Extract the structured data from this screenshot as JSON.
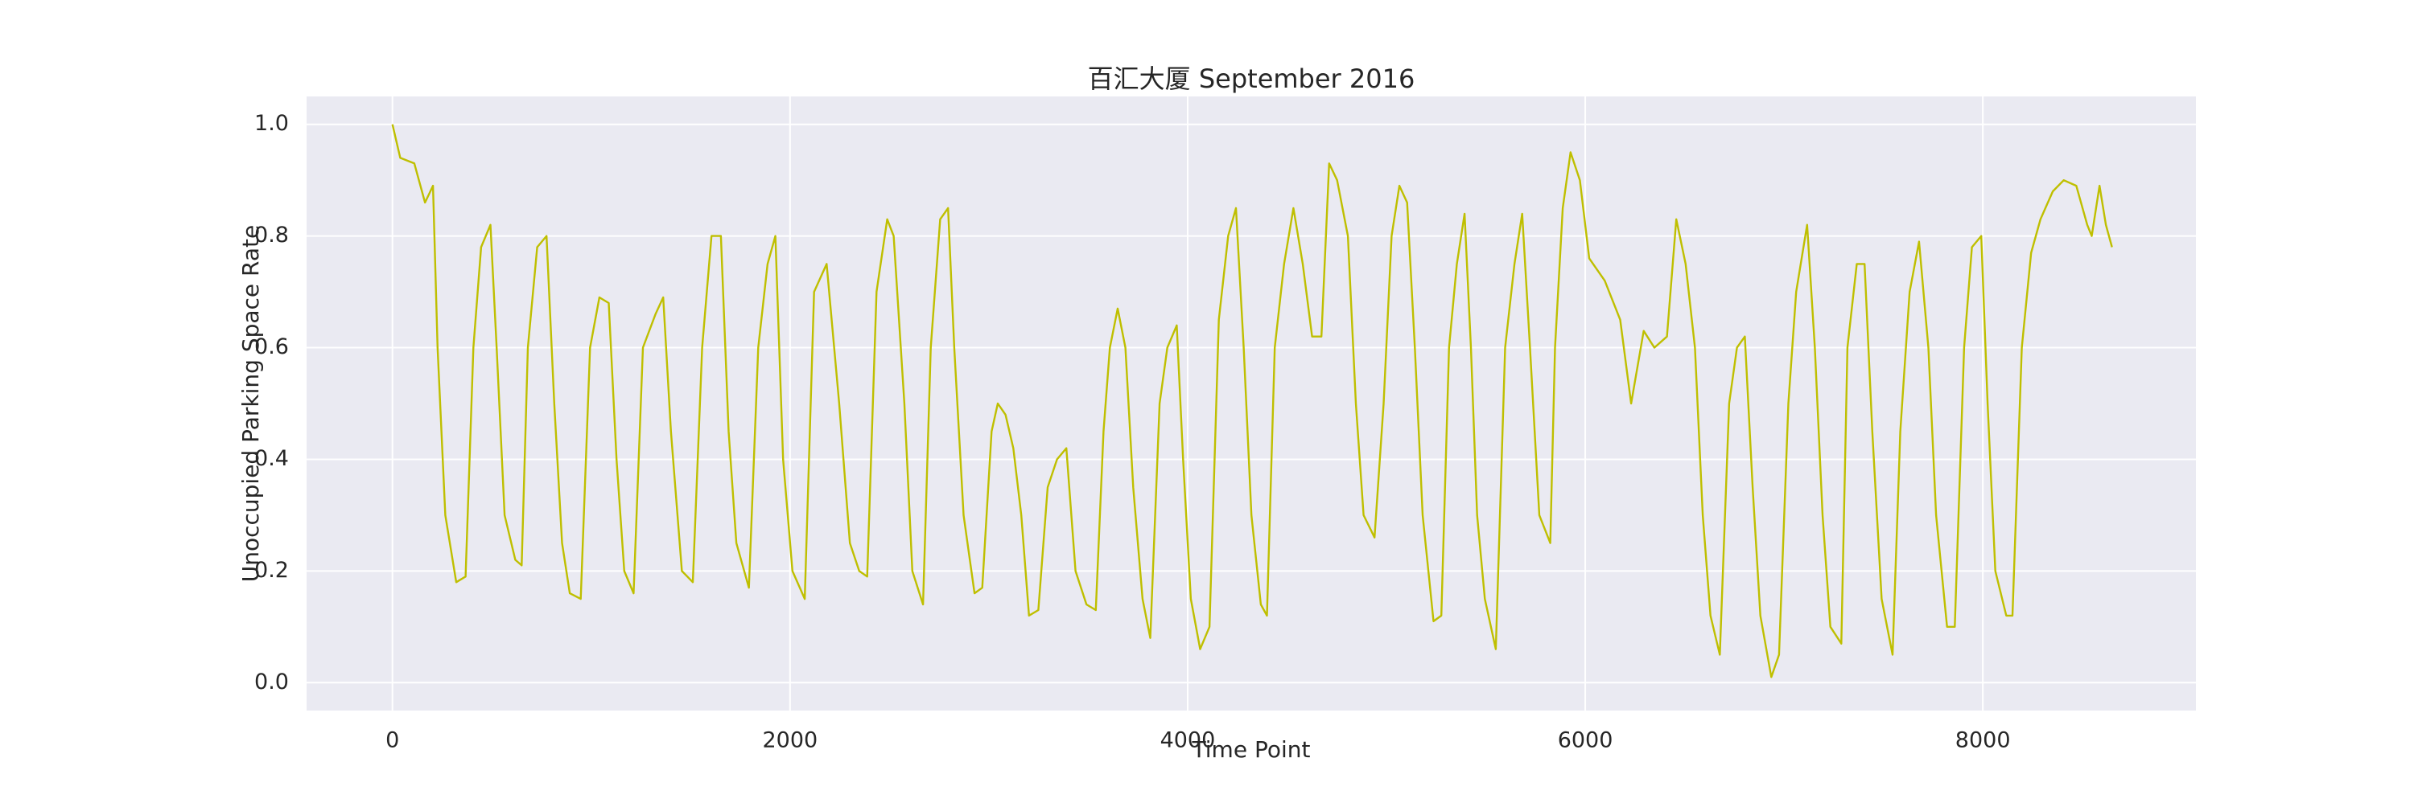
{
  "chart_data": {
    "type": "line",
    "title": "百汇大厦 September 2016",
    "x_label": "Time Point",
    "y_label": "Unoccupied Parking Space Rate",
    "xlim": [
      -432,
      9072
    ],
    "ylim": [
      -0.05,
      1.05
    ],
    "xticks": [
      0,
      2000,
      4000,
      6000,
      8000
    ],
    "yticks": [
      {
        "value": 0,
        "label": "0.0"
      },
      0.2,
      0.4,
      0.6,
      0.8,
      {
        "value": 1,
        "label": "1.0"
      }
    ],
    "grid": true,
    "series": [
      {
        "color": "#bfbf00",
        "x": [
          0,
          39,
          110,
          164,
          204,
          227,
          266,
          321,
          368,
          407,
          446,
          493,
          524,
          564,
          618,
          650,
          681,
          728,
          775,
          814,
          853,
          892,
          947,
          994,
          1041,
          1088,
          1127,
          1166,
          1213,
          1260,
          1323,
          1362,
          1401,
          1456,
          1511,
          1558,
          1605,
          1652,
          1691,
          1730,
          1793,
          1840,
          1887,
          1926,
          1965,
          2012,
          2074,
          2121,
          2184,
          2247,
          2301,
          2348,
          2388,
          2435,
          2489,
          2521,
          2575,
          2615,
          2669,
          2708,
          2755,
          2795,
          2826,
          2873,
          2928,
          2967,
          3014,
          3045,
          3084,
          3123,
          3163,
          3202,
          3249,
          3296,
          3343,
          3390,
          3436,
          3491,
          3538,
          3577,
          3609,
          3648,
          3687,
          3726,
          3773,
          3812,
          3859,
          3898,
          3945,
          3977,
          4016,
          4063,
          4110,
          4157,
          4204,
          4243,
          4282,
          4321,
          4368,
          4399,
          4438,
          4485,
          4532,
          4579,
          4626,
          4673,
          4712,
          4752,
          4806,
          4846,
          4885,
          4940,
          4986,
          5026,
          5065,
          5104,
          5143,
          5182,
          5237,
          5276,
          5315,
          5354,
          5393,
          5425,
          5456,
          5495,
          5550,
          5597,
          5644,
          5683,
          5722,
          5769,
          5824,
          5848,
          5887,
          5926,
          5973,
          6020,
          6098,
          6176,
          6231,
          6294,
          6348,
          6411,
          6458,
          6505,
          6552,
          6591,
          6630,
          6677,
          6724,
          6763,
          6803,
          6842,
          6881,
          6936,
          6975,
          7022,
          7061,
          7116,
          7155,
          7194,
          7233,
          7288,
          7319,
          7366,
          7405,
          7444,
          7491,
          7546,
          7585,
          7632,
          7679,
          7726,
          7765,
          7820,
          7859,
          7906,
          7945,
          7992,
          8024,
          8063,
          8118,
          8149,
          8196,
          8243,
          8290,
          8352,
          8407,
          8470,
          8525,
          8548,
          8587,
          8619,
          8650
        ],
        "values": [
          1.0,
          0.94,
          0.93,
          0.86,
          0.89,
          0.6,
          0.3,
          0.18,
          0.19,
          0.6,
          0.78,
          0.82,
          0.6,
          0.3,
          0.22,
          0.21,
          0.6,
          0.78,
          0.8,
          0.5,
          0.25,
          0.16,
          0.15,
          0.6,
          0.69,
          0.68,
          0.4,
          0.2,
          0.16,
          0.6,
          0.66,
          0.69,
          0.45,
          0.2,
          0.18,
          0.6,
          0.8,
          0.8,
          0.45,
          0.25,
          0.17,
          0.6,
          0.75,
          0.8,
          0.4,
          0.2,
          0.15,
          0.7,
          0.75,
          0.5,
          0.25,
          0.2,
          0.19,
          0.7,
          0.83,
          0.8,
          0.5,
          0.2,
          0.14,
          0.6,
          0.83,
          0.85,
          0.6,
          0.3,
          0.16,
          0.17,
          0.45,
          0.5,
          0.48,
          0.42,
          0.3,
          0.12,
          0.13,
          0.35,
          0.4,
          0.42,
          0.2,
          0.14,
          0.13,
          0.45,
          0.6,
          0.67,
          0.6,
          0.35,
          0.15,
          0.08,
          0.5,
          0.6,
          0.64,
          0.4,
          0.15,
          0.06,
          0.1,
          0.65,
          0.8,
          0.85,
          0.6,
          0.3,
          0.14,
          0.12,
          0.6,
          0.75,
          0.85,
          0.75,
          0.62,
          0.62,
          0.93,
          0.9,
          0.8,
          0.5,
          0.3,
          0.26,
          0.5,
          0.8,
          0.89,
          0.86,
          0.6,
          0.3,
          0.11,
          0.12,
          0.6,
          0.75,
          0.84,
          0.6,
          0.3,
          0.15,
          0.06,
          0.6,
          0.75,
          0.84,
          0.6,
          0.3,
          0.25,
          0.6,
          0.85,
          0.95,
          0.9,
          0.76,
          0.72,
          0.65,
          0.5,
          0.63,
          0.6,
          0.62,
          0.83,
          0.75,
          0.6,
          0.3,
          0.12,
          0.05,
          0.5,
          0.6,
          0.62,
          0.35,
          0.12,
          0.01,
          0.05,
          0.5,
          0.7,
          0.82,
          0.6,
          0.3,
          0.1,
          0.07,
          0.6,
          0.75,
          0.75,
          0.45,
          0.15,
          0.05,
          0.45,
          0.7,
          0.79,
          0.6,
          0.3,
          0.1,
          0.1,
          0.6,
          0.78,
          0.8,
          0.5,
          0.2,
          0.12,
          0.12,
          0.6,
          0.77,
          0.83,
          0.88,
          0.9,
          0.89,
          0.82,
          0.8,
          0.89,
          0.82,
          0.78
        ]
      }
    ]
  }
}
